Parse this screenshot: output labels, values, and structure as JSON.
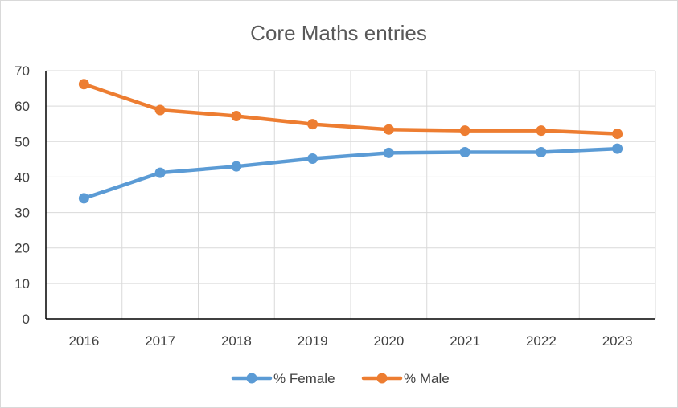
{
  "chart_data": {
    "type": "line",
    "title": "Core Maths entries",
    "xlabel": "",
    "ylabel": "",
    "categories": [
      "2016",
      "2017",
      "2018",
      "2019",
      "2020",
      "2021",
      "2022",
      "2023"
    ],
    "ylim": [
      0,
      70
    ],
    "yticks": [
      0,
      10,
      20,
      30,
      40,
      50,
      60,
      70
    ],
    "grid": true,
    "legend_position": "bottom",
    "series": [
      {
        "name": "% Female",
        "color": "#5b9bd5",
        "values": [
          34,
          41.2,
          43,
          45.2,
          46.8,
          47,
          47,
          48
        ]
      },
      {
        "name": "% Male",
        "color": "#ed7d31",
        "values": [
          66.2,
          58.9,
          57.2,
          54.9,
          53.4,
          53.1,
          53.1,
          52.2
        ]
      }
    ]
  }
}
